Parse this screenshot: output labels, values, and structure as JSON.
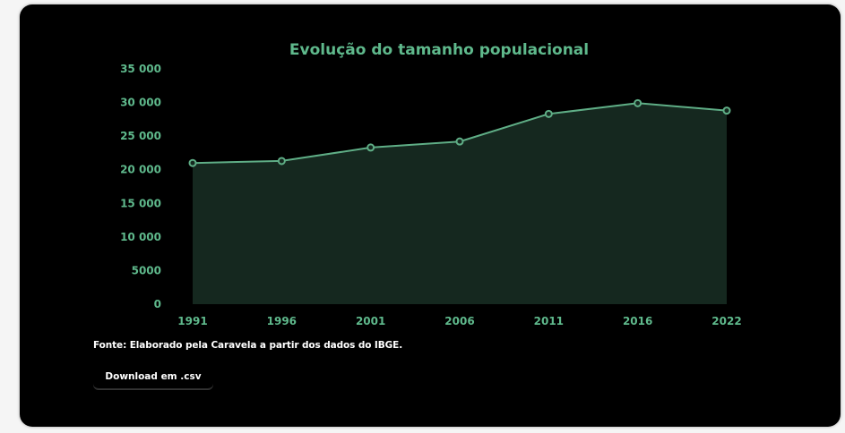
{
  "chart_data": {
    "type": "area",
    "title": "Evolução do tamanho populacional",
    "xlabel": "",
    "ylabel": "",
    "categories": [
      "1991",
      "1996",
      "2001",
      "2006",
      "2011",
      "2016",
      "2022"
    ],
    "values": [
      21000,
      21300,
      23300,
      24200,
      28300,
      29900,
      28800
    ],
    "ylim": [
      0,
      35000
    ],
    "y_ticks": [
      {
        "value": 0,
        "label": "0"
      },
      {
        "value": 5000,
        "label": "5000"
      },
      {
        "value": 10000,
        "label": "10 000"
      },
      {
        "value": 15000,
        "label": "15 000"
      },
      {
        "value": 20000,
        "label": "20 000"
      },
      {
        "value": 25000,
        "label": "25 000"
      },
      {
        "value": 30000,
        "label": "30 000"
      },
      {
        "value": 35000,
        "label": "35 000"
      }
    ],
    "grid": false,
    "legend": "none",
    "colors": {
      "line": "#5fae86",
      "fill": "#15281f",
      "text": "#5fb98c"
    }
  },
  "source_text": "Fonte: Elaborado pela Caravela a partir dos dados do IBGE.",
  "download_label": "Download em .csv"
}
